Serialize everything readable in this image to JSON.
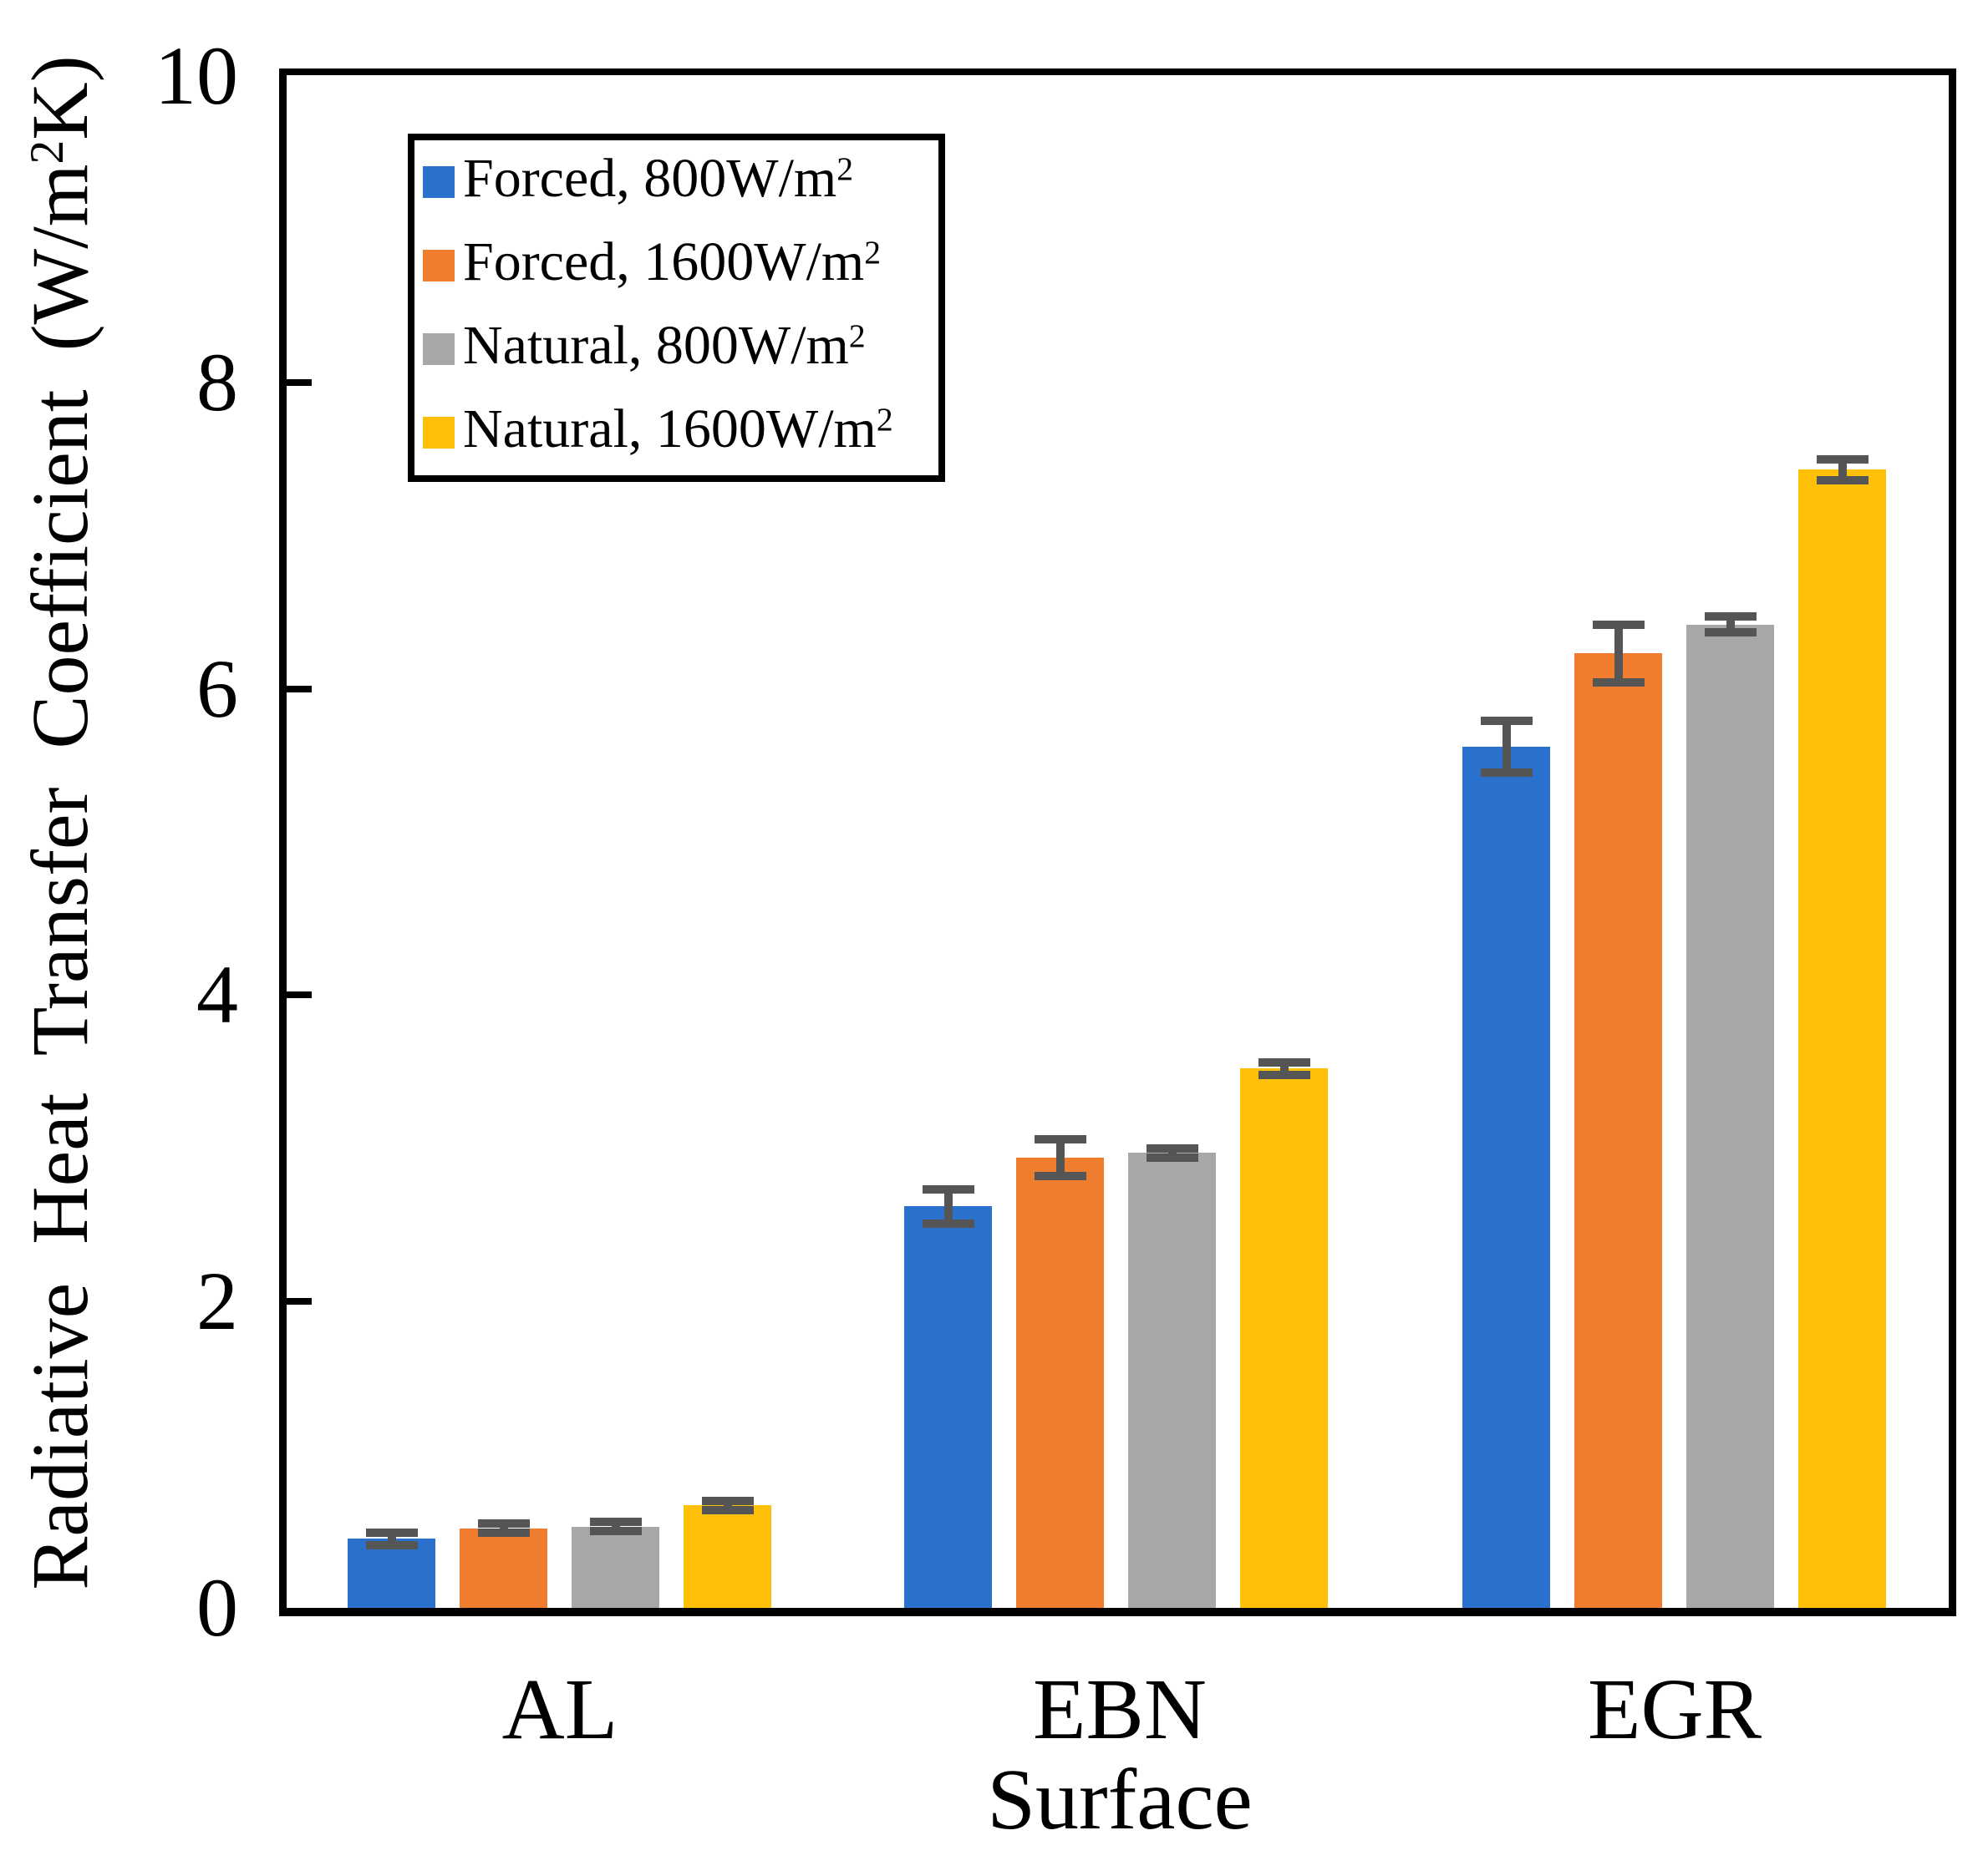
{
  "axes": {
    "yticks": {
      "t0": "0",
      "t2": "2",
      "t4": "4",
      "t6": "6",
      "t8": "8",
      "t10": "10"
    },
    "ylabel": {
      "main": "Radiative Heat Transfer Coefficient (W/m",
      "sup": "2",
      "end": "K)"
    },
    "xlabel": "Surface",
    "categories": {
      "c0": "AL",
      "c1": "EBN",
      "c2": "EGR"
    }
  },
  "legend": {
    "items": [
      {
        "text": "Forced, 800W/m",
        "sup": "2"
      },
      {
        "text": "Forced, 1600W/m",
        "sup": "2"
      },
      {
        "text": "Natural, 800W/m",
        "sup": "2"
      },
      {
        "text": "Natural, 1600W/m",
        "sup": "2"
      }
    ]
  },
  "chart_data": {
    "type": "bar",
    "title": "",
    "xlabel": "Surface",
    "ylabel": "Radiative Heat Transfer Coefficient (W/m2K)",
    "ylim": [
      0,
      10
    ],
    "ytick_step": 2,
    "grid": false,
    "legend_position": "upper-left",
    "categories": [
      "AL",
      "EBN",
      "EGR"
    ],
    "series": [
      {
        "name": "Forced, 800W/m2",
        "color": "#2971CC",
        "values": [
          0.45,
          2.62,
          5.62
        ],
        "errors": [
          0.04,
          0.11,
          0.17
        ]
      },
      {
        "name": "Forced, 1600W/m2",
        "color": "#F07D2E",
        "values": [
          0.52,
          2.94,
          6.23
        ],
        "errors": [
          0.03,
          0.12,
          0.19
        ]
      },
      {
        "name": "Natural, 800W/m2",
        "color": "#A7A7A7",
        "values": [
          0.53,
          2.97,
          6.42
        ],
        "errors": [
          0.03,
          0.03,
          0.05
        ]
      },
      {
        "name": "Natural, 1600W/m2",
        "color": "#FFC107",
        "values": [
          0.67,
          3.52,
          7.43
        ],
        "errors": [
          0.03,
          0.04,
          0.07
        ]
      }
    ],
    "error_bar_color": "#555555",
    "frame_color": "#000000",
    "background_color": "#ffffff"
  }
}
